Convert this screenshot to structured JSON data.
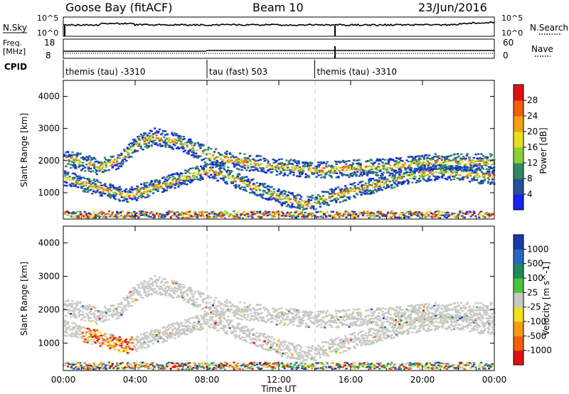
{
  "header": {
    "station": "Goose Bay (fitACF)",
    "beam": "Beam 10",
    "date": "23/Jun/2016"
  },
  "top_strip": {
    "nsky_label": "N.Sky",
    "nsky_ticks": [
      "10^5",
      "10^0"
    ],
    "nsearch_label": "N.Search",
    "nsearch_ticks": [
      "10^5",
      "10^0"
    ],
    "freq_label_1": "Freq.",
    "freq_label_2": "[MHz]",
    "freq_ticks": [
      "18",
      "8"
    ],
    "nave_label": "Nave",
    "nave_ticks": [
      "60",
      "0"
    ],
    "cpid_label": "CPID"
  },
  "cpid_segments": [
    {
      "start_hour": 0,
      "end_hour": 8,
      "label": "themis (tau) -3310"
    },
    {
      "start_hour": 8,
      "end_hour": 14,
      "label": "tau (fast) 503"
    },
    {
      "start_hour": 14,
      "end_hour": 24,
      "label": "themis (tau) -3310"
    }
  ],
  "time_axis": {
    "label": "Time UT",
    "ticks": [
      "00:00",
      "04:00",
      "08:00",
      "12:00",
      "16:00",
      "20:00",
      "00:00"
    ]
  },
  "range_axis": {
    "label": "Slant Range [km]",
    "ticks": [
      "1000",
      "2000",
      "3000",
      "4000"
    ]
  },
  "power_colorbar": {
    "label": "Power [dB]",
    "ticks": [
      "4",
      "8",
      "12",
      "16",
      "20",
      "24",
      "28"
    ],
    "colors": [
      "#1a22ee",
      "#26509a",
      "#2e8a60",
      "#8ccf3a",
      "#e6e020",
      "#f5a018",
      "#f06010",
      "#e01010"
    ]
  },
  "velocity_colorbar": {
    "label": "Velocity [m s^-1]",
    "ticks": [
      "1000",
      "500",
      "100",
      "25",
      "-25",
      "-100",
      "-500",
      "-1000"
    ],
    "colors": [
      "#1a3aa8",
      "#2a66c0",
      "#1e8a5a",
      "#4ec23a",
      "#c8c8c4",
      "#f0e020",
      "#f59a18",
      "#f06010",
      "#e01010"
    ]
  },
  "chart_data": {
    "type": "heatmap",
    "title": "Goose Bay (fitACF)  Beam 10  23/Jun/2016",
    "xlabel": "Time UT",
    "ylabel": "Slant Range [km]",
    "xlim_hours": [
      0,
      24
    ],
    "ylim_km": [
      180,
      4500
    ],
    "panels": [
      "Power [dB]",
      "Velocity [m s^-1]"
    ],
    "echo_bands": [
      {
        "name": "mid-range arc",
        "points": [
          [
            0.0,
            2050
          ],
          [
            1.0,
            1950
          ],
          [
            2.0,
            1800
          ],
          [
            3.0,
            2000
          ],
          [
            4.0,
            2500
          ],
          [
            5.0,
            2750
          ],
          [
            6.5,
            2550
          ],
          [
            8.0,
            2150
          ],
          [
            10.0,
            1950
          ],
          [
            12.0,
            1800
          ],
          [
            14.0,
            1700
          ],
          [
            16.0,
            1750
          ],
          [
            18.0,
            1800
          ],
          [
            20.0,
            1950
          ],
          [
            22.0,
            1950
          ],
          [
            23.5,
            1950
          ]
        ]
      },
      {
        "name": "lower arc",
        "points": [
          [
            0.0,
            1450
          ],
          [
            1.5,
            1200
          ],
          [
            2.5,
            1050
          ],
          [
            3.5,
            900
          ],
          [
            8.0,
            1700
          ],
          [
            10.0,
            1300
          ],
          [
            12.0,
            850
          ],
          [
            13.5,
            650
          ],
          [
            15.0,
            900
          ],
          [
            17.0,
            1200
          ],
          [
            19.0,
            1500
          ],
          [
            21.0,
            1650
          ],
          [
            23.5,
            1500
          ]
        ]
      },
      {
        "name": "near-range ground scatter",
        "points": [
          [
            0.0,
            300
          ],
          [
            24.0,
            300
          ]
        ]
      }
    ]
  }
}
